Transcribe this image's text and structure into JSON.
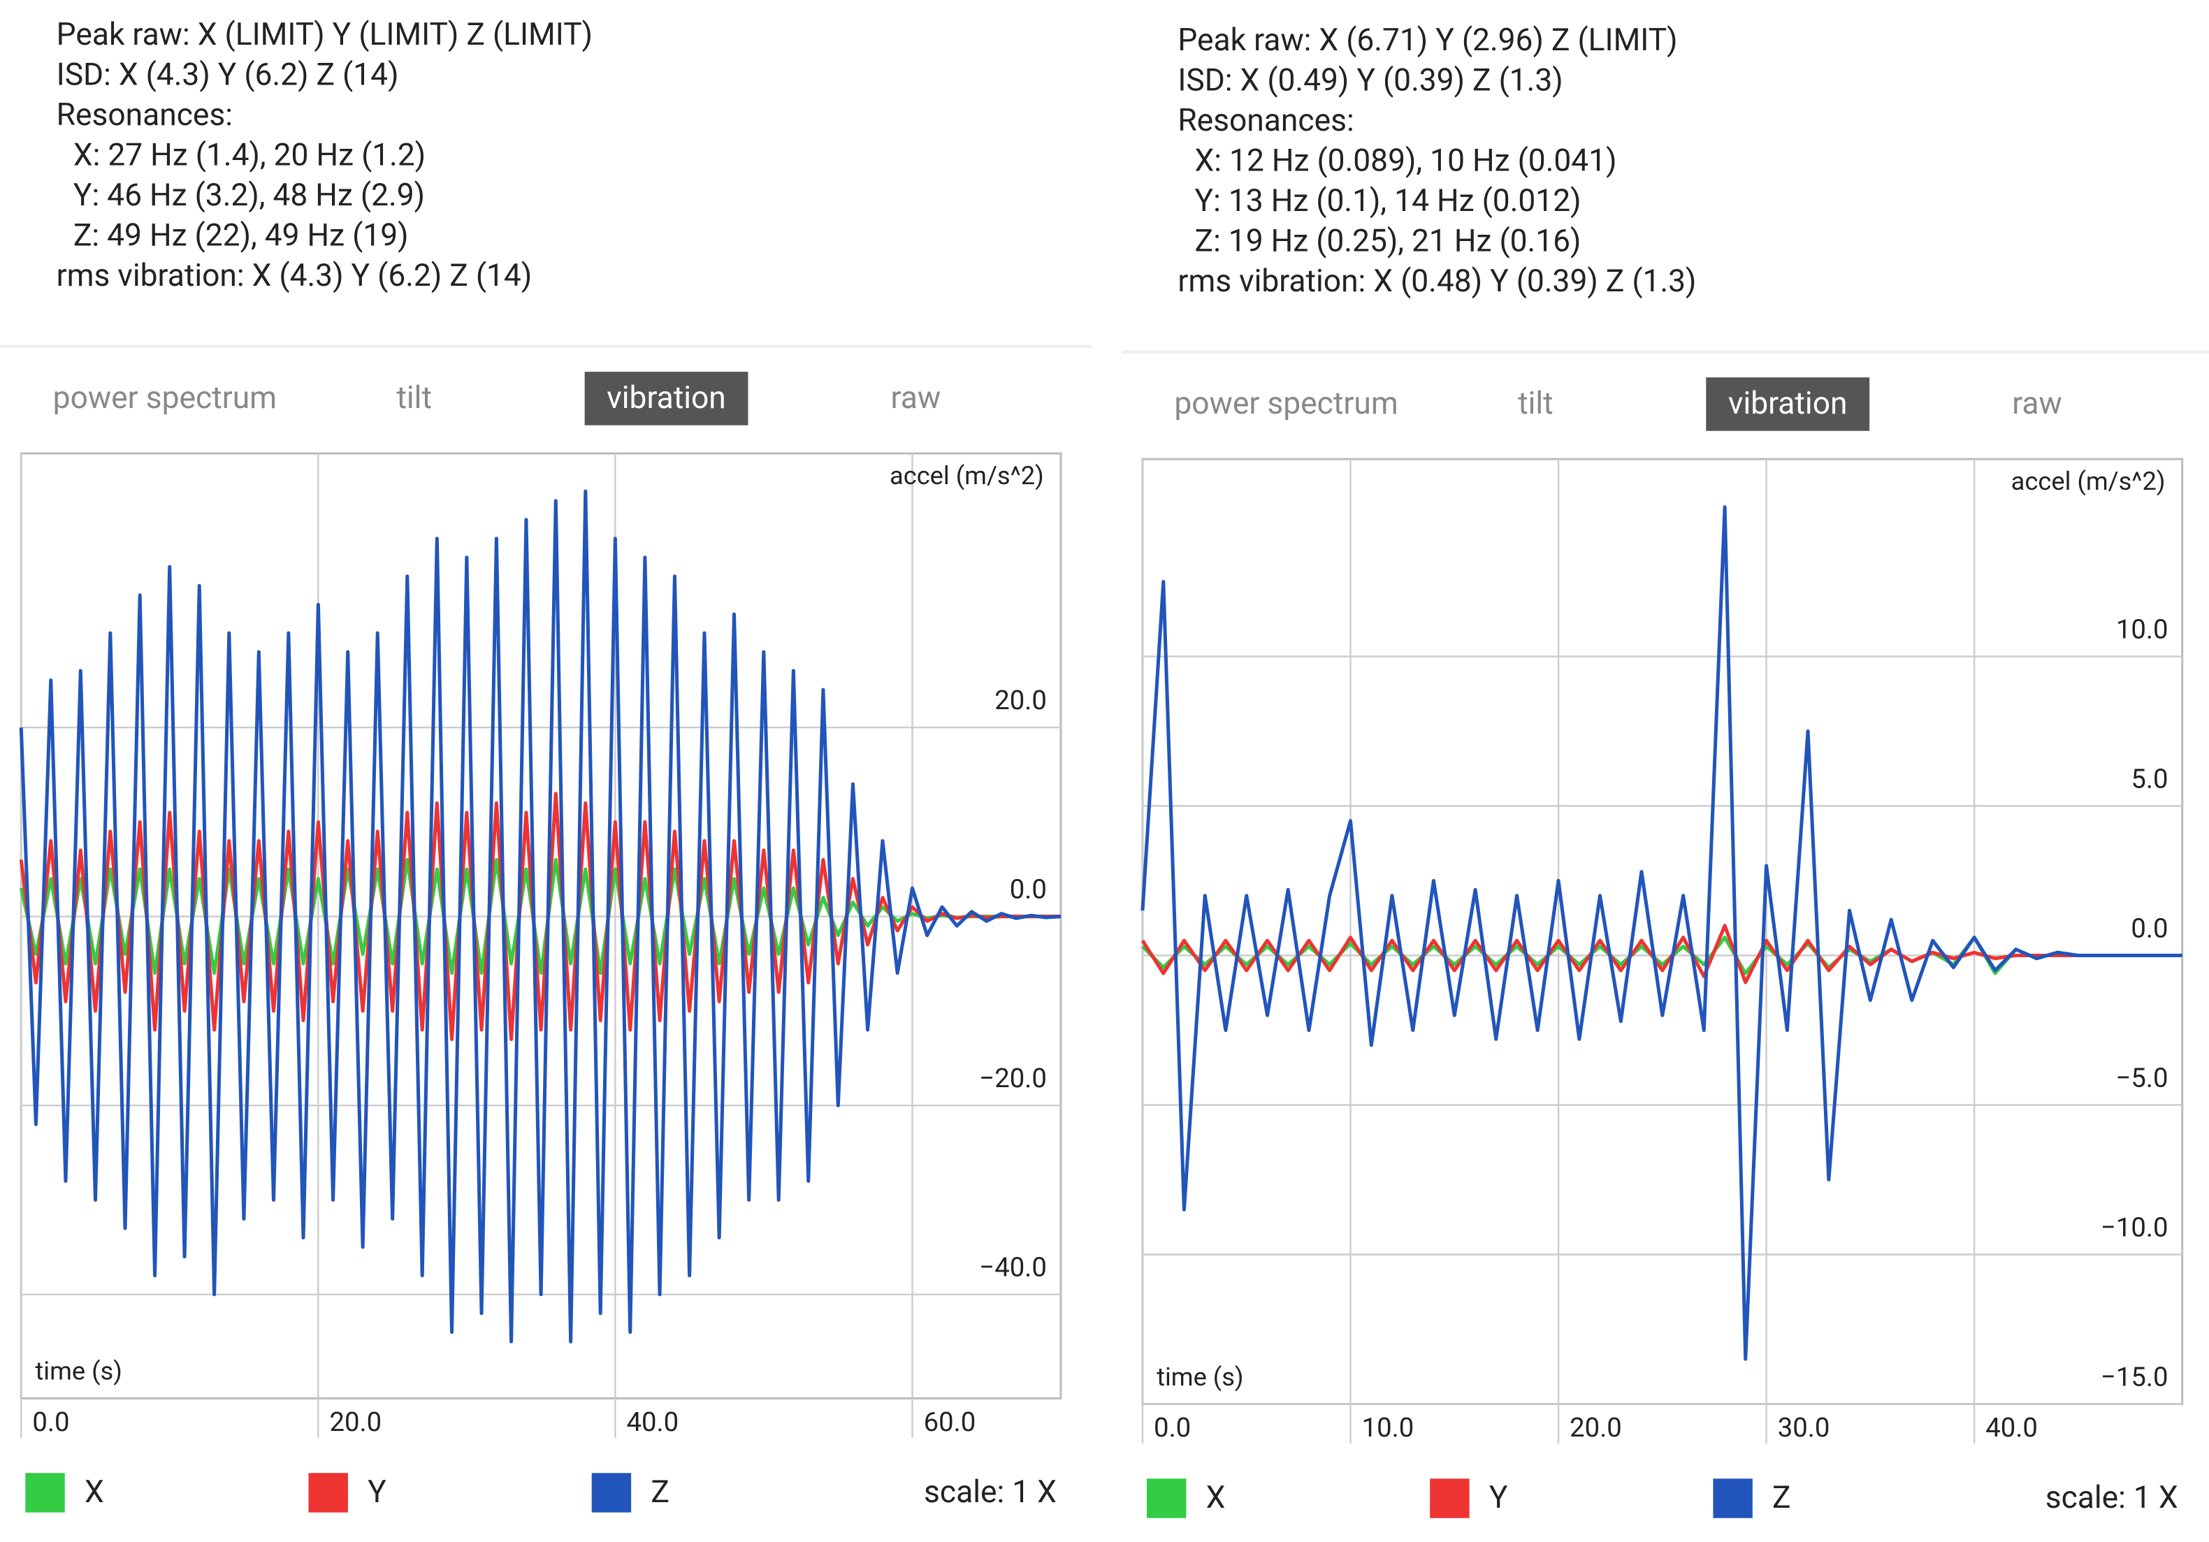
{
  "panels": [
    {
      "stats": {
        "peak_raw": "Peak raw: X (LIMIT) Y (LIMIT) Z (LIMIT)",
        "isd": "ISD: X (4.3) Y (6.2) Z (14)",
        "resonances_title": "Resonances:",
        "resonances": [
          "X:  27 Hz (1.4), 20 Hz (1.2)",
          "Y:  46 Hz (3.2), 48 Hz (2.9)",
          "Z:  49 Hz (22), 49 Hz (19)"
        ],
        "rms": "rms vibration: X (4.3) Y (6.2) Z (14)"
      },
      "tabs": [
        "power spectrum",
        "tilt",
        "vibration",
        "raw"
      ],
      "selected_tab": 2,
      "chart_data": {
        "type": "line",
        "y_label": "accel (m/s^2)",
        "x_label": "time (s)",
        "x": [
          0,
          1,
          2,
          3,
          4,
          5,
          6,
          7,
          8,
          9,
          10,
          11,
          12,
          13,
          14,
          15,
          16,
          17,
          18,
          19,
          20,
          21,
          22,
          23,
          24,
          25,
          26,
          27,
          28,
          29,
          30,
          31,
          32,
          33,
          34,
          35,
          36,
          37,
          38,
          39,
          40,
          41,
          42,
          43,
          44,
          45,
          46,
          47,
          48,
          49,
          50,
          51,
          52,
          53,
          54,
          55,
          56,
          57,
          58,
          59,
          60,
          61,
          62,
          63,
          64,
          65,
          66,
          67,
          68,
          69,
          70
        ],
        "series": [
          {
            "name": "X",
            "color": "#33cc44",
            "values": [
              3,
              -4,
              4,
              -5,
              4,
              -5,
              5,
              -4,
              5,
              -6,
              5,
              -5,
              4,
              -6,
              5,
              -5,
              4,
              -5,
              5,
              -5,
              4,
              -5,
              5,
              -4,
              5,
              -5,
              6,
              -5,
              5,
              -6,
              5,
              -6,
              6,
              -5,
              5,
              -6,
              6,
              -5,
              5,
              -6,
              5,
              -5,
              4,
              -5,
              5,
              -4,
              4,
              -5,
              4,
              -4,
              3,
              -4,
              3,
              -3,
              2,
              -2,
              1.5,
              -1,
              1,
              -0.5,
              0.3,
              -0.2,
              0.1,
              -0.1,
              0,
              0,
              0,
              0,
              0,
              0,
              0
            ]
          },
          {
            "name": "Y",
            "color": "#ee3333",
            "values": [
              6,
              -7,
              8,
              -9,
              7,
              -10,
              9,
              -8,
              10,
              -12,
              11,
              -10,
              9,
              -12,
              8,
              -9,
              8,
              -10,
              9,
              -11,
              10,
              -9,
              8,
              -10,
              9,
              -10,
              11,
              -12,
              12,
              -13,
              11,
              -12,
              12,
              -13,
              11,
              -12,
              13,
              -12,
              12,
              -11,
              10,
              -12,
              10,
              -11,
              9,
              -10,
              8,
              -9,
              8,
              -8,
              7,
              -8,
              7,
              -7,
              6,
              -5,
              4,
              -3,
              2,
              -1.5,
              1,
              -0.5,
              0.3,
              -0.2,
              0.1,
              -0.1,
              0,
              0,
              0,
              0,
              0
            ]
          },
          {
            "name": "Z",
            "color": "#2255bb",
            "values": [
              20,
              -22,
              25,
              -28,
              26,
              -30,
              30,
              -33,
              34,
              -38,
              37,
              -36,
              35,
              -40,
              30,
              -32,
              28,
              -30,
              30,
              -34,
              33,
              -30,
              28,
              -35,
              30,
              -32,
              36,
              -38,
              40,
              -44,
              38,
              -42,
              40,
              -45,
              42,
              -40,
              44,
              -45,
              45,
              -42,
              40,
              -44,
              38,
              -40,
              36,
              -38,
              30,
              -34,
              32,
              -30,
              28,
              -30,
              26,
              -28,
              24,
              -20,
              14,
              -12,
              8,
              -6,
              3,
              -2,
              1,
              -1,
              0.5,
              -0.5,
              0.3,
              -0.2,
              0.1,
              -0.1,
              0
            ]
          }
        ],
        "xlim": [
          0,
          70
        ],
        "ylim": [
          -51,
          49
        ],
        "xticks": [
          {
            "value": 0,
            "label": "0.0"
          },
          {
            "value": 20,
            "label": "20.0"
          },
          {
            "value": 40,
            "label": "40.0"
          },
          {
            "value": 60,
            "label": "60.0"
          }
        ],
        "yticks": [
          {
            "value": -40,
            "label": "−40.0"
          },
          {
            "value": -20,
            "label": "−20.0"
          },
          {
            "value": 0,
            "label": "0.0"
          },
          {
            "value": 20,
            "label": "20.0"
          }
        ],
        "grid": true
      },
      "scale": "scale: 1 X"
    },
    {
      "stats": {
        "peak_raw": "Peak raw: X (6.71) Y (2.96) Z (LIMIT)",
        "isd": "ISD: X (0.49) Y (0.39) Z (1.3)",
        "resonances_title": "Resonances:",
        "resonances": [
          "X:  12 Hz (0.089), 10 Hz (0.041)",
          "Y:  13 Hz (0.1), 14 Hz (0.012)",
          "Z:  19 Hz (0.25), 21 Hz (0.16)"
        ],
        "rms": "rms vibration: X (0.48) Y (0.39) Z (1.3)"
      },
      "tabs": [
        "power spectrum",
        "tilt",
        "vibration",
        "raw"
      ],
      "selected_tab": 2,
      "chart_data": {
        "type": "line",
        "y_label": "accel (m/s^2)",
        "x_label": "time (s)",
        "x": [
          0,
          1,
          2,
          3,
          4,
          5,
          6,
          7,
          8,
          9,
          10,
          11,
          12,
          13,
          14,
          15,
          16,
          17,
          18,
          19,
          20,
          21,
          22,
          23,
          24,
          25,
          26,
          27,
          28,
          29,
          30,
          31,
          32,
          33,
          34,
          35,
          36,
          37,
          38,
          39,
          40,
          41,
          42,
          43,
          44,
          45,
          46,
          47,
          48,
          49,
          50
        ],
        "series": [
          {
            "name": "X",
            "color": "#33cc44",
            "values": [
              0.3,
              -0.4,
              0.3,
              -0.3,
              0.3,
              -0.3,
              0.3,
              -0.3,
              0.3,
              -0.3,
              0.4,
              -0.3,
              0.3,
              -0.3,
              0.3,
              -0.3,
              0.3,
              -0.3,
              0.3,
              -0.3,
              0.3,
              -0.3,
              0.3,
              -0.3,
              0.3,
              -0.3,
              0.3,
              -0.3,
              0.6,
              -0.6,
              0.3,
              -0.3,
              0.4,
              -0.4,
              0.2,
              -0.2,
              0.2,
              -0.2,
              0.1,
              -0.3,
              0.6,
              -0.6,
              0.2,
              -0.1,
              0.1,
              0,
              0,
              0,
              0,
              0,
              0
            ]
          },
          {
            "name": "Y",
            "color": "#ee3333",
            "values": [
              0.5,
              -0.6,
              0.5,
              -0.5,
              0.5,
              -0.5,
              0.5,
              -0.5,
              0.5,
              -0.5,
              0.6,
              -0.5,
              0.5,
              -0.5,
              0.5,
              -0.5,
              0.5,
              -0.5,
              0.5,
              -0.5,
              0.5,
              -0.5,
              0.5,
              -0.5,
              0.5,
              -0.5,
              0.6,
              -0.7,
              1,
              -0.9,
              0.5,
              -0.5,
              0.5,
              -0.5,
              0.3,
              -0.3,
              0.2,
              -0.2,
              0.1,
              -0.1,
              0.1,
              -0.1,
              0,
              0,
              0,
              0,
              0,
              0,
              0,
              0,
              0
            ]
          },
          {
            "name": "Z",
            "color": "#2255bb",
            "values": [
              1.5,
              12.5,
              -8.5,
              2,
              -2.5,
              2,
              -2,
              2.2,
              -2.5,
              2,
              4.5,
              -3,
              2,
              -2.5,
              2.5,
              -2,
              2.2,
              -2.8,
              2,
              -2.5,
              2.5,
              -2.8,
              2,
              -2.2,
              2.8,
              -2,
              2,
              -2.5,
              15,
              -13.5,
              3,
              -2.5,
              7.5,
              -7.5,
              1.5,
              -1.5,
              1.2,
              -1.5,
              0.5,
              -0.4,
              0.6,
              -0.5,
              0.2,
              -0.1,
              0.1,
              0,
              0,
              0,
              0,
              0,
              0
            ]
          }
        ],
        "xlim": [
          0,
          50
        ],
        "ylim": [
          -15,
          16.6
        ],
        "xticks": [
          {
            "value": 0,
            "label": "0.0"
          },
          {
            "value": 10,
            "label": "10.0"
          },
          {
            "value": 20,
            "label": "20.0"
          },
          {
            "value": 30,
            "label": "30.0"
          },
          {
            "value": 40,
            "label": "40.0"
          }
        ],
        "yticks": [
          {
            "value": -15,
            "label": "−15.0"
          },
          {
            "value": -10,
            "label": "−10.0"
          },
          {
            "value": -5,
            "label": "−5.0"
          },
          {
            "value": 0,
            "label": "0.0"
          },
          {
            "value": 5,
            "label": "5.0"
          },
          {
            "value": 10,
            "label": "10.0"
          }
        ],
        "grid": true
      },
      "scale": "scale: 1 X"
    }
  ]
}
